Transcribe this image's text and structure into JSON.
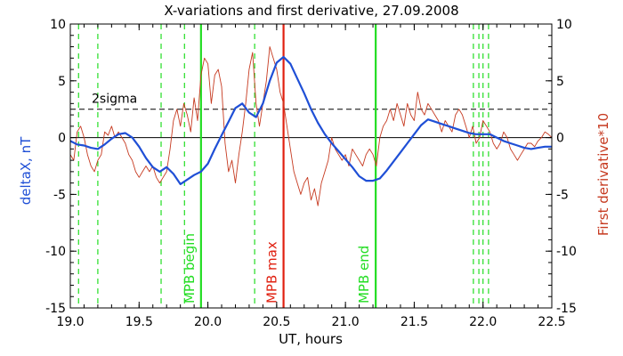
{
  "chart_data": {
    "type": "line",
    "title": "X-variations and first derivative, 27.09.2008",
    "xlabel": "UT, hours",
    "ylabel_left": "deltaX, nT",
    "ylabel_right": "First derivative*10",
    "xlim": [
      19.0,
      22.5
    ],
    "ylim": [
      -15,
      10
    ],
    "xticks": [
      "19.0",
      "19.5",
      "20.0",
      "20.5",
      "21.0",
      "21.5",
      "22.0",
      "22.5"
    ],
    "yticks": [
      "10",
      "5",
      "0",
      "-5",
      "-10",
      "-15"
    ],
    "threshold": {
      "label": "2sigma",
      "value": 2.5
    },
    "zero_line": 0,
    "colors": {
      "deltaX": "#1f4fd6",
      "derivative": "#c63a20",
      "markers_green": "#22dd22",
      "marker_red": "#e02010",
      "axes": "#000000"
    },
    "series": [
      {
        "key": "deltaX",
        "x": [
          19.0,
          19.05,
          19.1,
          19.15,
          19.2,
          19.25,
          19.3,
          19.35,
          19.4,
          19.45,
          19.5,
          19.55,
          19.6,
          19.65,
          19.7,
          19.75,
          19.8,
          19.85,
          19.9,
          19.95,
          20.0,
          20.05,
          20.1,
          20.15,
          20.2,
          20.25,
          20.3,
          20.35,
          20.4,
          20.45,
          20.5,
          20.55,
          20.6,
          20.65,
          20.7,
          20.75,
          20.8,
          20.85,
          20.9,
          20.95,
          21.0,
          21.05,
          21.1,
          21.15,
          21.2,
          21.25,
          21.3,
          21.35,
          21.4,
          21.45,
          21.5,
          21.55,
          21.6,
          21.65,
          21.7,
          21.75,
          21.8,
          21.85,
          21.9,
          21.95,
          22.0,
          22.05,
          22.1,
          22.15,
          22.2,
          22.25,
          22.3,
          22.35,
          22.4,
          22.45,
          22.5
        ],
        "values": [
          -0.3,
          -0.6,
          -0.7,
          -0.9,
          -1.0,
          -0.6,
          -0.1,
          0.3,
          0.4,
          0.0,
          -0.8,
          -1.8,
          -2.6,
          -3.0,
          -2.6,
          -3.2,
          -4.1,
          -3.7,
          -3.3,
          -3.0,
          -2.3,
          -1.0,
          0.2,
          1.4,
          2.6,
          3.0,
          2.2,
          1.8,
          3.0,
          5.0,
          6.6,
          7.1,
          6.5,
          5.2,
          3.9,
          2.5,
          1.3,
          0.3,
          -0.5,
          -1.2,
          -1.9,
          -2.6,
          -3.4,
          -3.8,
          -3.8,
          -3.6,
          -2.9,
          -2.1,
          -1.3,
          -0.5,
          0.3,
          1.1,
          1.6,
          1.4,
          1.2,
          1.0,
          0.8,
          0.6,
          0.4,
          0.3,
          0.3,
          0.3,
          0.0,
          -0.3,
          -0.5,
          -0.7,
          -0.9,
          -1.0,
          -0.9,
          -0.8,
          -0.8
        ]
      },
      {
        "key": "derivative",
        "x": [
          19.0,
          19.025,
          19.05,
          19.075,
          19.1,
          19.125,
          19.15,
          19.175,
          19.2,
          19.225,
          19.25,
          19.275,
          19.3,
          19.325,
          19.35,
          19.375,
          19.4,
          19.425,
          19.45,
          19.475,
          19.5,
          19.525,
          19.55,
          19.575,
          19.6,
          19.625,
          19.65,
          19.675,
          19.7,
          19.725,
          19.75,
          19.775,
          19.8,
          19.825,
          19.85,
          19.875,
          19.9,
          19.925,
          19.95,
          19.975,
          20.0,
          20.025,
          20.05,
          20.075,
          20.1,
          20.125,
          20.15,
          20.175,
          20.2,
          20.225,
          20.25,
          20.275,
          20.3,
          20.325,
          20.35,
          20.375,
          20.4,
          20.425,
          20.45,
          20.475,
          20.5,
          20.525,
          20.55,
          20.575,
          20.6,
          20.625,
          20.65,
          20.675,
          20.7,
          20.725,
          20.75,
          20.775,
          20.8,
          20.825,
          20.85,
          20.875,
          20.9,
          20.925,
          20.95,
          20.975,
          21.0,
          21.025,
          21.05,
          21.075,
          21.1,
          21.125,
          21.15,
          21.175,
          21.2,
          21.225,
          21.25,
          21.275,
          21.3,
          21.325,
          21.35,
          21.375,
          21.4,
          21.425,
          21.45,
          21.475,
          21.5,
          21.525,
          21.55,
          21.575,
          21.6,
          21.625,
          21.65,
          21.675,
          21.7,
          21.725,
          21.75,
          21.775,
          21.8,
          21.825,
          21.85,
          21.875,
          21.9,
          21.925,
          21.95,
          21.975,
          22.0,
          22.025,
          22.05,
          22.075,
          22.1,
          22.125,
          22.15,
          22.175,
          22.2,
          22.225,
          22.25,
          22.275,
          22.3,
          22.325,
          22.35,
          22.375,
          22.4,
          22.425,
          22.45,
          22.475,
          22.5
        ],
        "values": [
          -1.5,
          -2.0,
          0.5,
          1.0,
          0.0,
          -1.5,
          -2.5,
          -3.0,
          -2.0,
          -1.5,
          0.5,
          0.2,
          1.0,
          0.0,
          0.5,
          0.0,
          -0.5,
          -1.5,
          -2.0,
          -3.0,
          -3.5,
          -3.0,
          -2.5,
          -3.0,
          -2.5,
          -3.5,
          -4.0,
          -3.5,
          -3.0,
          -1.0,
          1.5,
          2.5,
          1.0,
          3.0,
          2.0,
          0.5,
          3.5,
          1.5,
          5.5,
          7.0,
          6.5,
          3.0,
          5.5,
          6.0,
          4.5,
          -0.5,
          -3.0,
          -2.0,
          -4.0,
          -1.5,
          0.5,
          3.0,
          6.0,
          7.5,
          3.0,
          1.0,
          3.0,
          5.0,
          8.0,
          7.0,
          6.0,
          4.0,
          3.0,
          1.0,
          -1.0,
          -3.0,
          -4.0,
          -5.0,
          -4.0,
          -3.5,
          -5.5,
          -4.5,
          -6.0,
          -4.0,
          -3.0,
          -2.0,
          0.0,
          -1.0,
          -1.5,
          -2.0,
          -1.5,
          -2.5,
          -1.0,
          -1.5,
          -2.0,
          -2.5,
          -1.5,
          -1.0,
          -1.5,
          -2.5,
          0.0,
          1.0,
          1.5,
          2.5,
          1.5,
          3.0,
          2.0,
          1.0,
          3.0,
          2.0,
          1.5,
          4.0,
          2.5,
          2.0,
          3.0,
          2.5,
          2.0,
          1.5,
          0.5,
          1.5,
          1.0,
          0.5,
          2.0,
          2.5,
          2.0,
          1.0,
          0.0,
          1.0,
          -0.5,
          0.0,
          1.5,
          1.0,
          0.5,
          -0.5,
          -1.0,
          -0.5,
          0.5,
          0.0,
          -1.0,
          -1.5,
          -2.0,
          -1.5,
          -1.0,
          -0.5,
          -0.5,
          -0.8,
          -0.3,
          0.0,
          0.5,
          0.3,
          0.0
        ]
      }
    ],
    "dashed_green_markers": [
      19.06,
      19.2,
      19.66,
      19.83,
      20.34,
      21.93,
      21.97,
      22.0,
      22.04
    ],
    "solid_markers": [
      {
        "x": 19.95,
        "label": "MPB begin",
        "color": "#22dd22"
      },
      {
        "x": 20.55,
        "label": "MPB max",
        "color": "#e02010"
      },
      {
        "x": 21.22,
        "label": "MPB end",
        "color": "#22dd22"
      }
    ]
  }
}
